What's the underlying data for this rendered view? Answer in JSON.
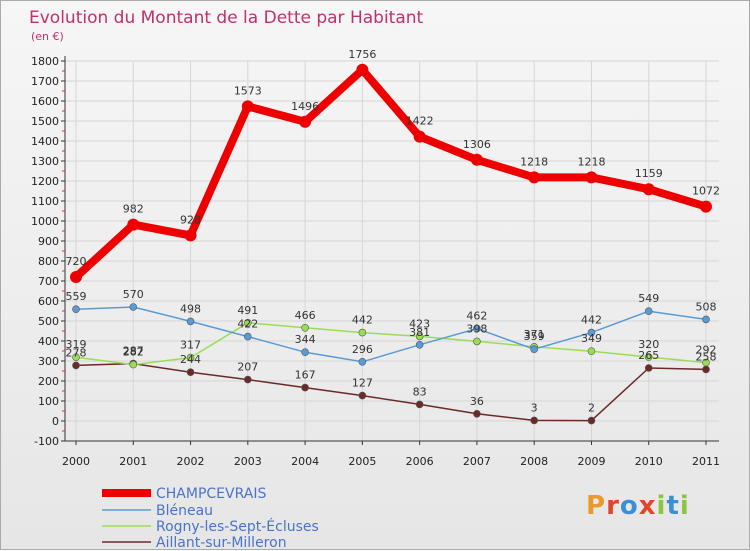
{
  "title": "Evolution du Montant de la Dette par Habitant",
  "subtitle": "(en €)",
  "logo": "Proxiti",
  "colors": {
    "title": "#c0306a",
    "legend_text": "#4a73c8",
    "axis": "#333333",
    "grid": "#d6d6d6"
  },
  "chart_data": {
    "type": "line",
    "title": "Evolution du Montant de la Dette par Habitant",
    "subtitle": "(en €)",
    "x": [
      "2000",
      "2001",
      "2002",
      "2003",
      "2004",
      "2005",
      "2006",
      "2007",
      "2008",
      "2009",
      "2010",
      "2011"
    ],
    "ylim": [
      -100,
      1800
    ],
    "yticks": [
      -100,
      0,
      100,
      200,
      300,
      400,
      500,
      600,
      700,
      800,
      900,
      1000,
      1100,
      1200,
      1300,
      1400,
      1500,
      1600,
      1700,
      1800
    ],
    "grid": true,
    "legend_position": "bottom-left",
    "series": [
      {
        "name": "CHAMPCEVRAIS",
        "color": "#ee0000",
        "values": [
          720,
          982,
          928,
          1573,
          1496,
          1756,
          1422,
          1306,
          1218,
          1218,
          1159,
          1072
        ]
      },
      {
        "name": "Bléneau",
        "color": "#5b9bd5",
        "values": [
          559,
          570,
          498,
          422,
          344,
          296,
          381,
          462,
          359,
          442,
          549,
          508
        ]
      },
      {
        "name": "Rogny-les-Sept-Écluses",
        "color": "#99dd55",
        "values": [
          319,
          282,
          317,
          491,
          466,
          442,
          423,
          398,
          371,
          349,
          320,
          292
        ]
      },
      {
        "name": "Aillant-sur-Milleron",
        "color": "#6b2a2a",
        "values": [
          278,
          287,
          244,
          207,
          167,
          127,
          83,
          36,
          3,
          2,
          265,
          258
        ]
      }
    ]
  }
}
